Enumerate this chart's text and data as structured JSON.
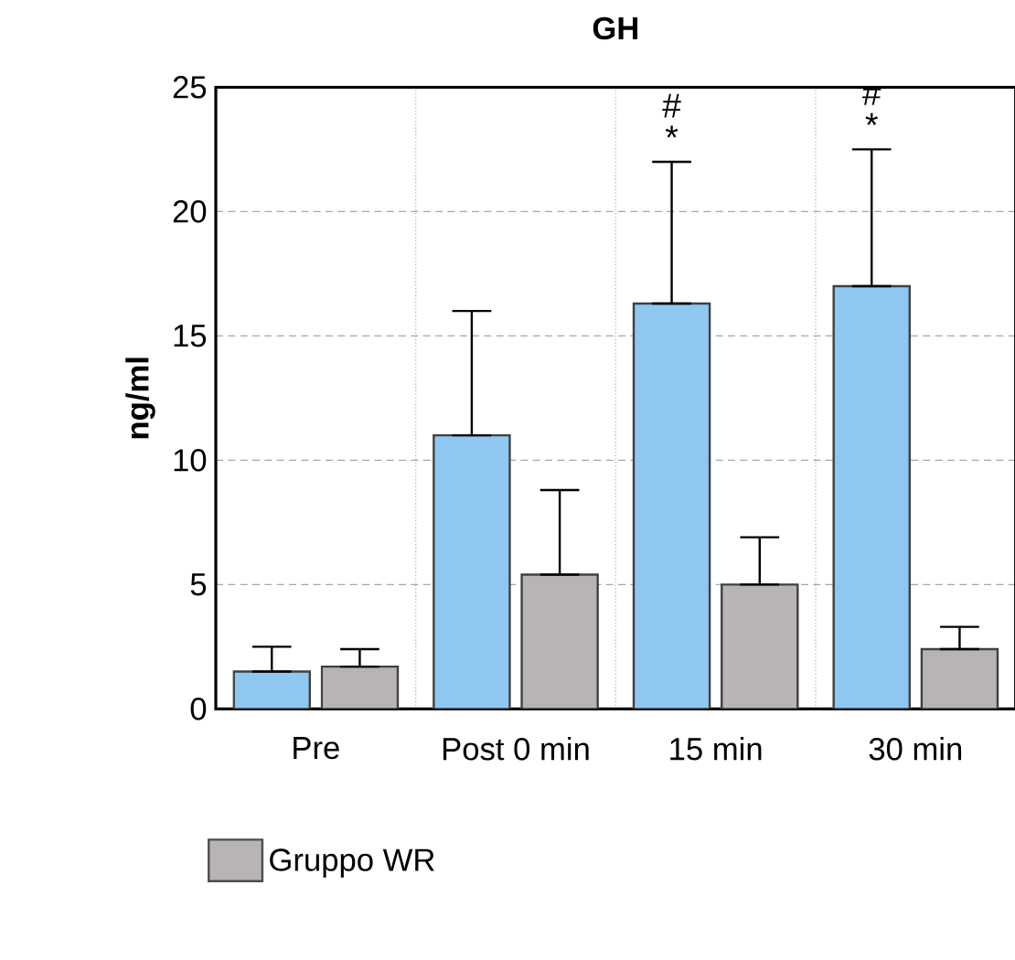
{
  "chart_data": {
    "type": "bar",
    "title": "GH",
    "ylabel": "ng/ml",
    "categories": [
      "Pre",
      "Post 0 min",
      "15 min",
      "30 min"
    ],
    "series": [
      {
        "color": "#8ec8f0",
        "values": [
          1.5,
          11,
          16.3,
          17
        ],
        "errors": [
          [
            1.5,
            2.5
          ],
          [
            11,
            16
          ],
          [
            16.3,
            22
          ],
          [
            17,
            22.5
          ]
        ]
      },
      {
        "name": "Gruppo WR",
        "color": "#b8b4b4",
        "values": [
          1.7,
          5.4,
          5,
          2.4
        ],
        "errors": [
          [
            1.7,
            2.4
          ],
          [
            5.4,
            8.8
          ],
          [
            5,
            6.9
          ],
          [
            2.4,
            3.3
          ]
        ]
      }
    ],
    "ylim": [
      0,
      25
    ],
    "yticks": [
      0,
      5,
      10,
      15,
      20,
      25
    ],
    "grid": true,
    "legend": "bottom left",
    "annotations": [
      "*",
      "#",
      "*",
      "#"
    ]
  }
}
